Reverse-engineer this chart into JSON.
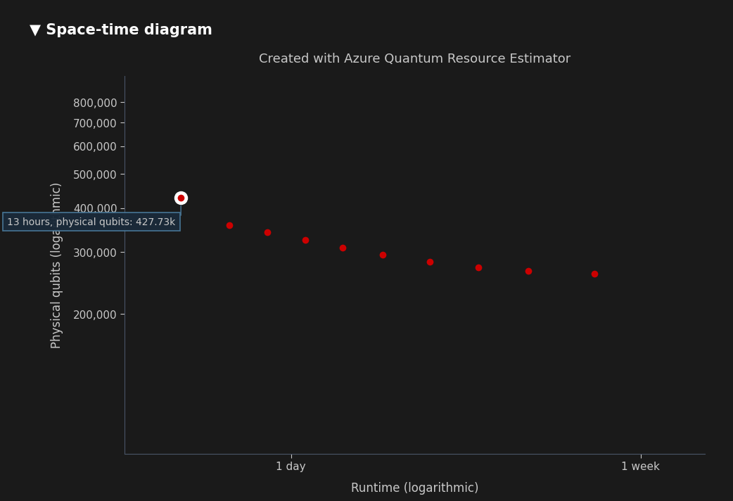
{
  "title": "Created with Azure Quantum Resource Estimator",
  "header_title": "▼ Space-time diagram",
  "xlabel": "Runtime (logarithmic)",
  "ylabel": "Physical qubits (logarithmic)",
  "background_color": "#1a1a1a",
  "header_bg_color": "#252525",
  "axes_bg_color": "#1a1a1a",
  "text_color": "#c8c8c8",
  "title_color": "#c8c8c8",
  "header_color": "#ffffff",
  "spine_color": "#4a5568",
  "dot_color": "#cc0000",
  "highlight_dot_outer_color": "#ffffff",
  "highlight_dot_inner_color": "#cc0000",
  "annotation_text": "13 hours, physical qubits: 427.73k",
  "annotation_bg": "#1a2a3a",
  "annotation_border": "#4a7a9b",
  "x_points_hours": [
    13,
    17,
    21,
    26,
    32,
    40,
    52,
    68,
    90,
    130
  ],
  "y_points": [
    427730,
    357000,
    342000,
    325000,
    309000,
    294000,
    281000,
    271000,
    265000,
    260000
  ],
  "highlighted_index": 0,
  "xlim_hours": [
    9.5,
    240
  ],
  "ylim": [
    80000,
    950000
  ],
  "yticks": [
    200000,
    300000,
    400000,
    500000,
    600000,
    700000,
    800000
  ],
  "xtick_positions_hours": [
    24,
    168
  ],
  "xtick_labels": [
    "1 day",
    "1 week"
  ],
  "figsize": [
    10.12,
    7.06
  ],
  "dpi": 100
}
